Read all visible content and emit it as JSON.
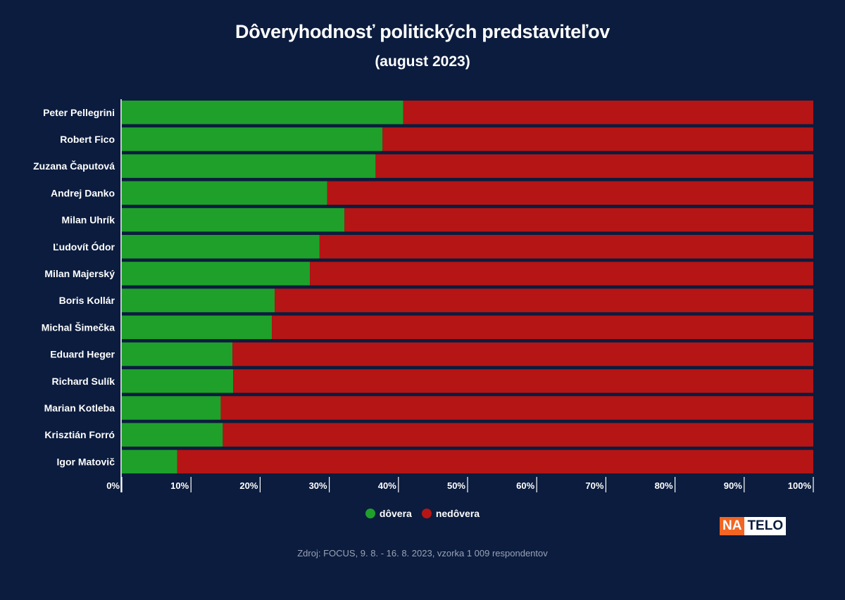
{
  "colors": {
    "background": "#0b1c3e",
    "trust": "#1fa02b",
    "distrust": "#b51515",
    "logo_na": "#f26522"
  },
  "chart_data": {
    "type": "bar",
    "orientation": "horizontal",
    "stacked": true,
    "title": "Dôveryhodnosť politických predstaviteľov",
    "subtitle": "(august 2023)",
    "categories": [
      "Peter Pellegrini",
      "Robert Fico",
      "Zuzana Čaputová",
      "Andrej Danko",
      "Milan Uhrík",
      "Ľudovít Ódor",
      "Milan Majerský",
      "Boris Kollár",
      "Michal Šimečka",
      "Eduard Heger",
      "Richard Sulík",
      "Marian Kotleba",
      "Krisztián Forró",
      "Igor Matovič"
    ],
    "series": [
      {
        "name": "dôvera",
        "color": "#1fa02b",
        "values": [
          40.7,
          37.7,
          36.7,
          29.7,
          32.2,
          28.6,
          27.2,
          22.1,
          21.7,
          16.0,
          16.1,
          14.3,
          14.6,
          8.0
        ]
      },
      {
        "name": "nedôvera",
        "color": "#b51515",
        "values": [
          59.3,
          62.3,
          63.3,
          70.3,
          67.8,
          71.4,
          72.8,
          77.9,
          78.3,
          84.0,
          83.9,
          85.7,
          85.4,
          92.0
        ]
      }
    ],
    "xlim": [
      0,
      100
    ],
    "xticks": [
      "0%",
      "10%",
      "20%",
      "30%",
      "40%",
      "50%",
      "60%",
      "70%",
      "80%",
      "90%",
      "100%"
    ],
    "grid": false,
    "legend": "bottom-center"
  },
  "legend": {
    "trust_label": "dôvera",
    "distrust_label": "nedôvera"
  },
  "logo": {
    "na": "NA",
    "telo": "TELO"
  },
  "source": "Zdroj: FOCUS, 9. 8. - 16. 8. 2023, vzorka 1 009 respondentov"
}
